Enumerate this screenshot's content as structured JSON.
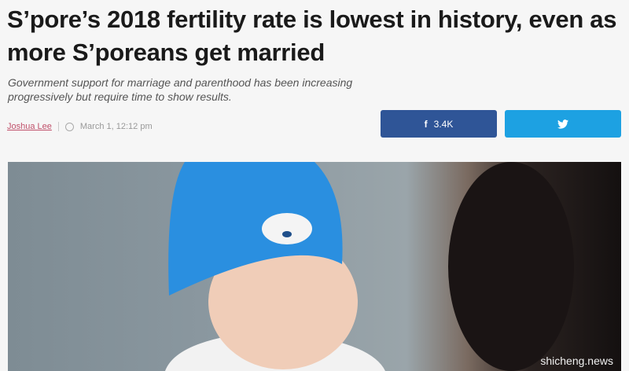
{
  "article": {
    "title": "S’pore’s 2018 fertility rate is lowest in history, even as more S’poreans get married",
    "subtitle": "Government support for marriage and parenthood has been increasing progressively but require time to show results.",
    "author": "Joshua Lee",
    "timestamp": "March 1, 12:12 pm"
  },
  "share": {
    "facebook_icon": "f",
    "facebook_count": "3.4K",
    "twitter_icon": "twitter-bird"
  },
  "colors": {
    "facebook": "#2f5597",
    "twitter": "#1da1e2",
    "author": "#c0506a"
  },
  "watermark": "shicheng.news"
}
